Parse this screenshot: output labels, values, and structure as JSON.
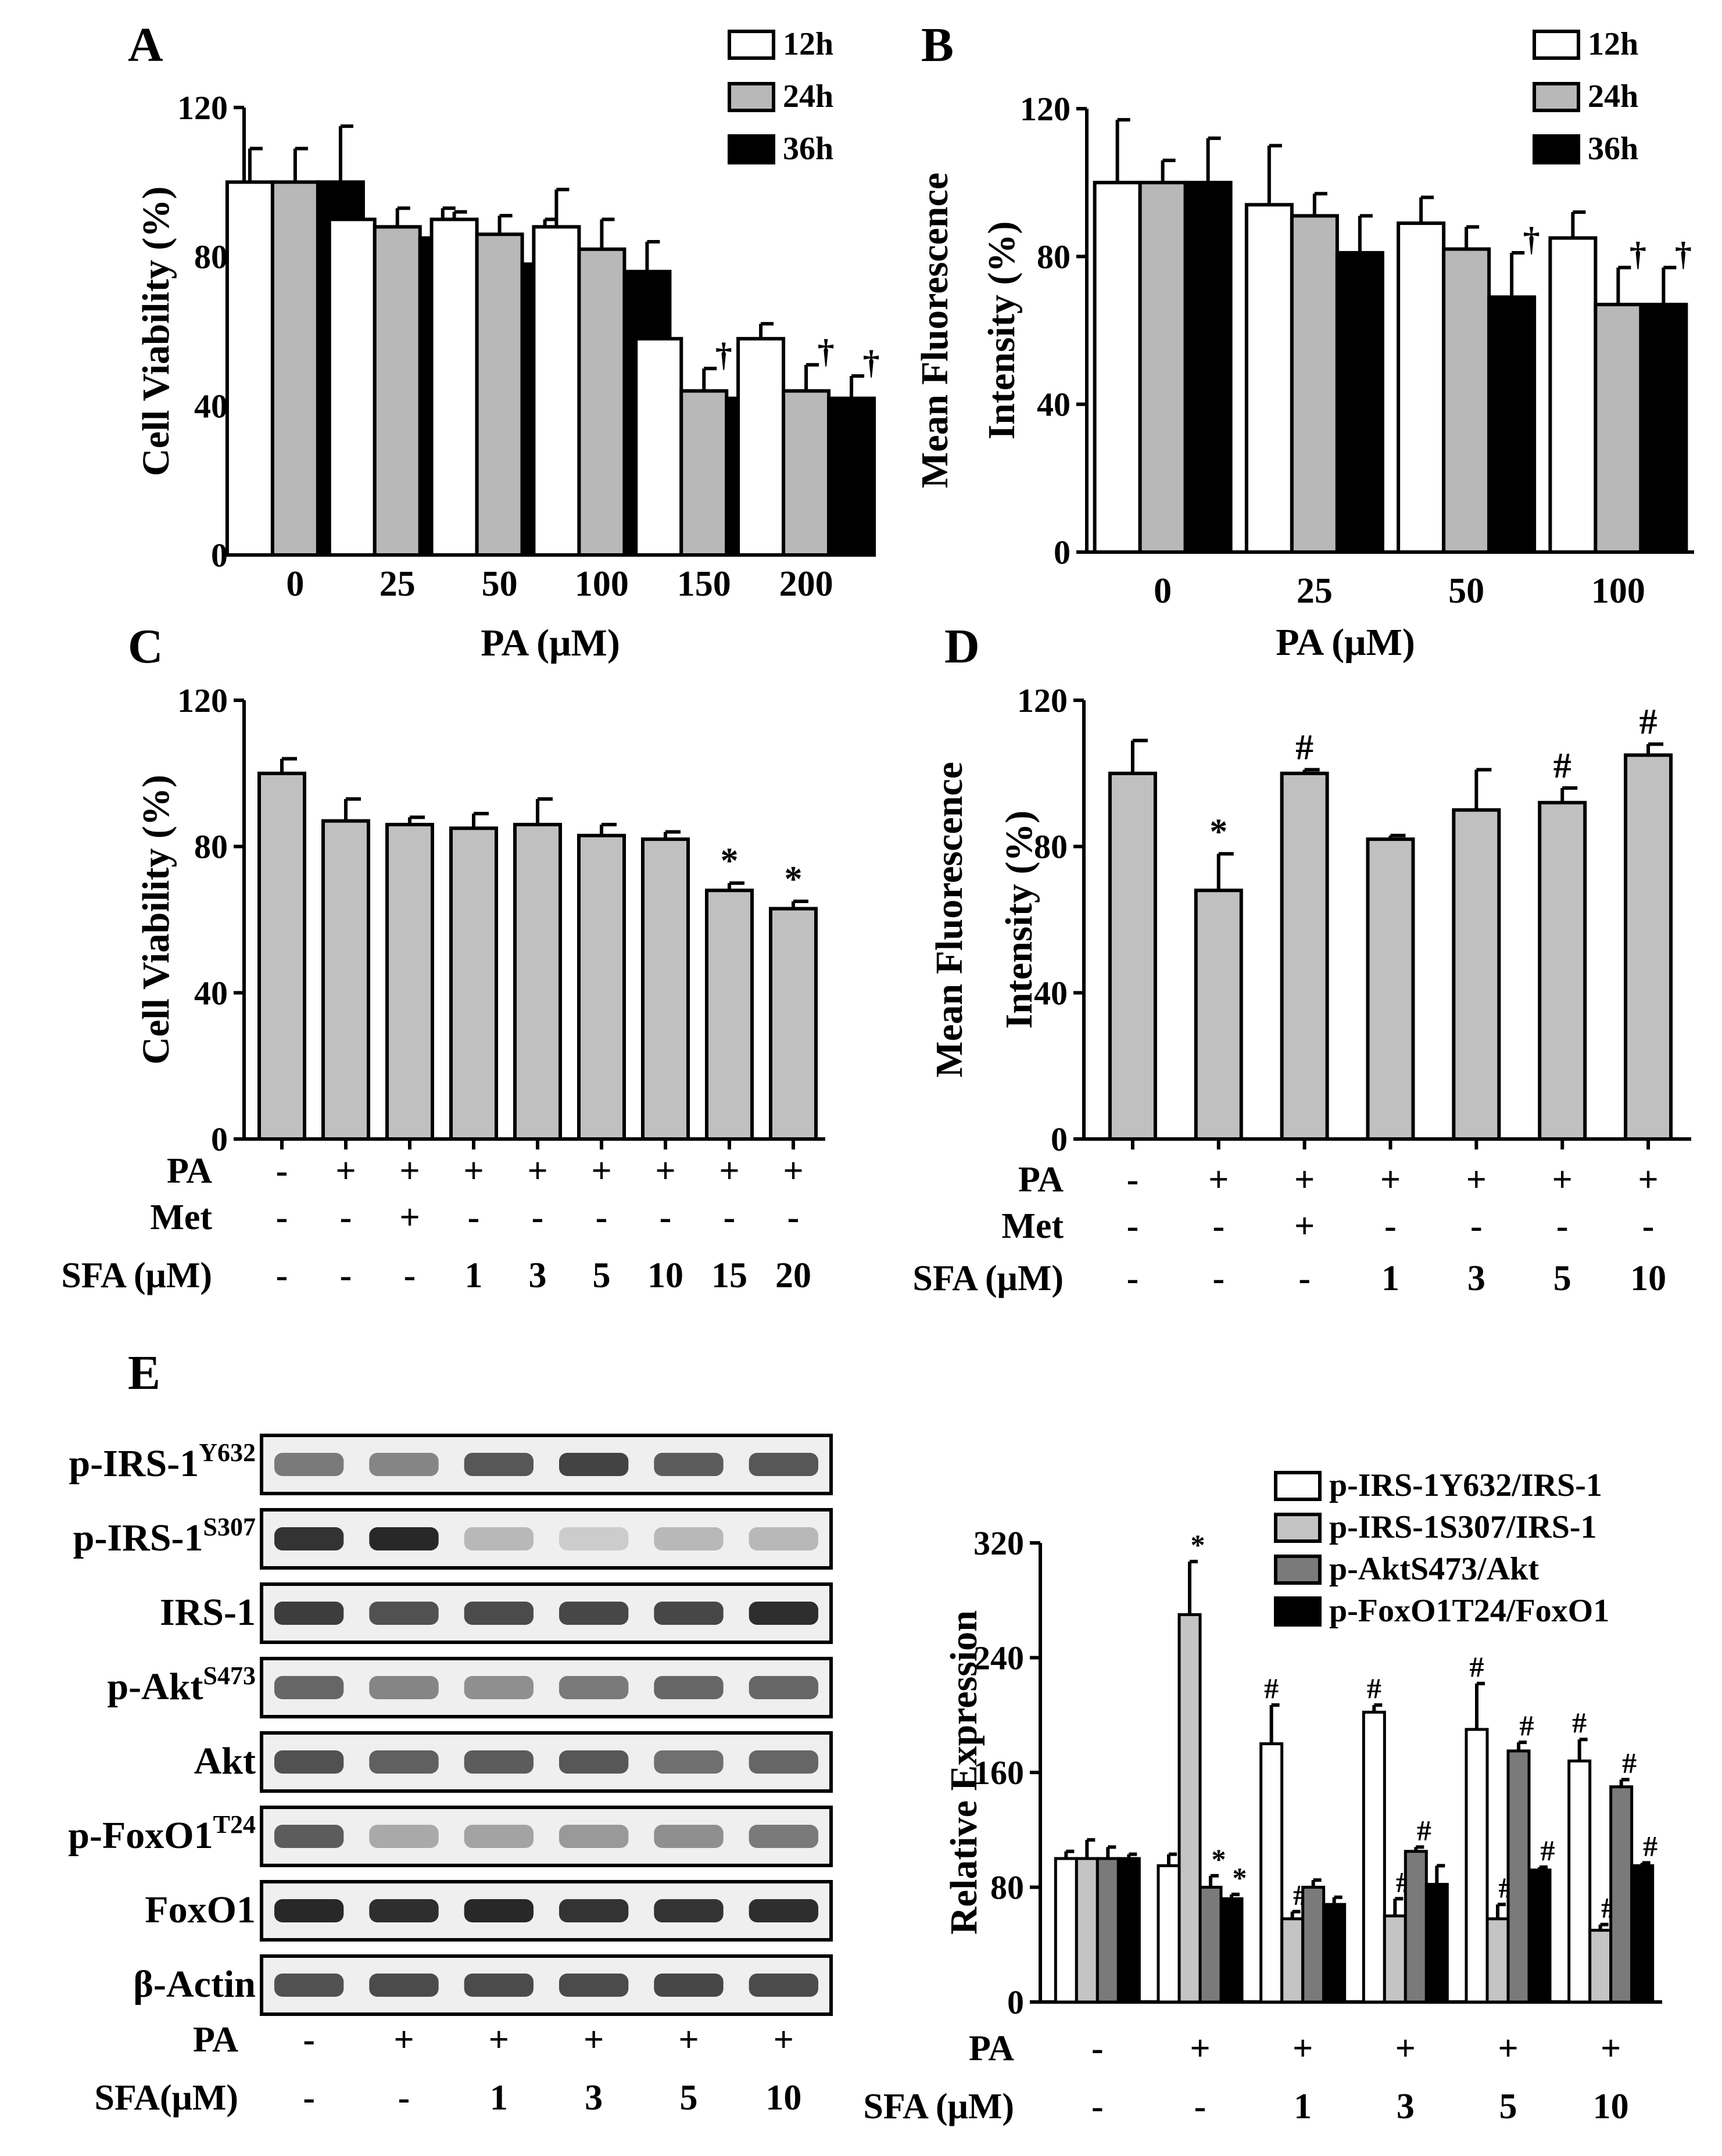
{
  "chart_data": [
    {
      "id": "A",
      "type": "bar",
      "panel_label": "A",
      "xlabel": "PA (μM)",
      "ylabel": "Cell Viability (%)",
      "ylim": [
        0,
        120
      ],
      "yticks": [
        "0",
        "40",
        "80",
        "120"
      ],
      "categories": [
        "0",
        "25",
        "50",
        "100",
        "150",
        "200"
      ],
      "series": [
        {
          "name": "12h",
          "color": "#ffffff",
          "values": [
            100,
            90,
            90,
            88,
            58,
            58
          ],
          "errors": [
            9,
            5,
            2,
            10,
            4,
            4
          ],
          "marks": [
            "",
            "",
            "",
            "",
            "",
            ""
          ]
        },
        {
          "name": "24h",
          "color": "#b8b8b8",
          "values": [
            100,
            88,
            86,
            82,
            44,
            44
          ],
          "errors": [
            9,
            5,
            5,
            8,
            6,
            7
          ],
          "marks": [
            "",
            "",
            "",
            "",
            "†",
            "†"
          ]
        },
        {
          "name": "36h",
          "color": "#000000",
          "values": [
            100,
            85,
            78,
            76,
            42,
            42
          ],
          "errors": [
            15,
            8,
            12,
            8,
            6,
            6
          ],
          "marks": [
            "",
            "",
            "",
            "",
            "†",
            "†"
          ]
        }
      ]
    },
    {
      "id": "B",
      "type": "bar",
      "panel_label": "B",
      "xlabel": "PA (μM)",
      "ylabel": [
        "Mean Fluorescence",
        "Intensity (%)"
      ],
      "ylim": [
        0,
        120
      ],
      "yticks": [
        "0",
        "40",
        "80",
        "120"
      ],
      "categories": [
        "0",
        "25",
        "50",
        "100"
      ],
      "series": [
        {
          "name": "12h",
          "color": "#ffffff",
          "values": [
            100,
            94,
            89,
            85
          ],
          "errors": [
            17,
            16,
            7,
            7
          ],
          "marks": [
            "",
            "",
            "",
            ""
          ]
        },
        {
          "name": "24h",
          "color": "#b8b8b8",
          "values": [
            100,
            91,
            82,
            67
          ],
          "errors": [
            6,
            6,
            6,
            10
          ],
          "marks": [
            "",
            "",
            "",
            "†"
          ]
        },
        {
          "name": "36h",
          "color": "#000000",
          "values": [
            100,
            81,
            69,
            67
          ],
          "errors": [
            12,
            10,
            12,
            10
          ],
          "marks": [
            "",
            "",
            "†",
            "†"
          ]
        }
      ]
    },
    {
      "id": "C",
      "type": "bar",
      "panel_label": "C",
      "ylabel": "Cell Viability (%)",
      "ylim": [
        0,
        120
      ],
      "yticks": [
        "0",
        "40",
        "80",
        "120"
      ],
      "values": [
        100,
        87,
        86,
        85,
        86,
        83,
        82,
        68,
        63
      ],
      "errors": [
        4,
        6,
        2,
        4,
        7,
        3,
        2,
        2,
        2
      ],
      "marks": [
        "",
        "",
        "",
        "",
        "",
        "",
        "",
        "*",
        "*"
      ],
      "bar_color": "#c0c0c0",
      "conditions": [
        {
          "label": "PA",
          "values": [
            "-",
            "+",
            "+",
            "+",
            "+",
            "+",
            "+",
            "+",
            "+"
          ]
        },
        {
          "label": "Met",
          "values": [
            "-",
            "-",
            "+",
            "-",
            "-",
            "-",
            "-",
            "-",
            "-"
          ]
        },
        {
          "label": "SFA (μM)",
          "values": [
            "-",
            "-",
            "-",
            "1",
            "3",
            "5",
            "10",
            "15",
            "20"
          ]
        }
      ]
    },
    {
      "id": "D",
      "type": "bar",
      "panel_label": "D",
      "ylabel": [
        "Mean Fluorescence",
        "Intensity (%)"
      ],
      "ylim": [
        0,
        120
      ],
      "yticks": [
        "0",
        "40",
        "80",
        "120"
      ],
      "values": [
        100,
        68,
        100,
        82,
        90,
        92,
        105
      ],
      "errors": [
        9,
        10,
        1,
        1,
        11,
        4,
        3
      ],
      "marks": [
        "",
        "*",
        "#",
        "",
        "",
        "#",
        "#"
      ],
      "bar_color": "#c0c0c0",
      "conditions": [
        {
          "label": "PA",
          "values": [
            "-",
            "+",
            "+",
            "+",
            "+",
            "+",
            "+"
          ]
        },
        {
          "label": "Met",
          "values": [
            "-",
            "-",
            "+",
            "-",
            "-",
            "-",
            "-"
          ]
        },
        {
          "label": "SFA (μM)",
          "values": [
            "-",
            "-",
            "-",
            "1",
            "3",
            "5",
            "10"
          ]
        }
      ]
    },
    {
      "id": "E",
      "type": "bar",
      "panel_label": "E",
      "ylabel": "Relative Expression",
      "ylim": [
        0,
        320
      ],
      "yticks": [
        "0",
        "80",
        "160",
        "240",
        "320"
      ],
      "series": [
        {
          "name": "p-IRS-1Y632/IRS-1",
          "color": "#ffffff",
          "values": [
            100,
            95,
            180,
            202,
            190,
            168
          ],
          "errors": [
            5,
            8,
            27,
            5,
            32,
            15
          ],
          "marks": [
            "",
            "",
            "#",
            "#",
            "#",
            "#"
          ]
        },
        {
          "name": "p-IRS-1S307/IRS-1",
          "color": "#c4c4c4",
          "values": [
            100,
            270,
            58,
            60,
            58,
            50
          ],
          "errors": [
            13,
            37,
            5,
            12,
            10,
            4
          ],
          "marks": [
            "",
            "*",
            "#",
            "#",
            "#",
            "#"
          ]
        },
        {
          "name": "p-AktS473/Akt",
          "color": "#7a7a7a",
          "values": [
            100,
            80,
            80,
            105,
            175,
            150
          ],
          "errors": [
            8,
            8,
            5,
            3,
            6,
            5
          ],
          "marks": [
            "",
            "*",
            "",
            "#",
            "#",
            "#"
          ]
        },
        {
          "name": "p-FoxO1T24/FoxO1",
          "color": "#000000",
          "values": [
            100,
            72,
            68,
            82,
            92,
            95
          ],
          "errors": [
            3,
            3,
            5,
            13,
            2,
            2
          ],
          "marks": [
            "",
            "*",
            "",
            "",
            "#",
            "#"
          ]
        }
      ],
      "conditions": [
        {
          "label": "PA",
          "values": [
            "-",
            "+",
            "+",
            "+",
            "+",
            "+"
          ]
        },
        {
          "label": "SFA (μM)",
          "values": [
            "-",
            "-",
            "1",
            "3",
            "5",
            "10"
          ]
        }
      ]
    }
  ],
  "blot": {
    "rows": [
      {
        "main": "p-IRS-1",
        "sup": "Y632",
        "intensity": [
          0.55,
          0.5,
          0.72,
          0.82,
          0.7,
          0.72
        ]
      },
      {
        "main": "p-IRS-1",
        "sup": "S307",
        "intensity": [
          0.9,
          0.95,
          0.25,
          0.15,
          0.25,
          0.25
        ]
      },
      {
        "main": "IRS-1",
        "sup": "",
        "intensity": [
          0.85,
          0.75,
          0.78,
          0.8,
          0.8,
          0.92
        ]
      },
      {
        "main": "p-Akt",
        "sup": "S473",
        "intensity": [
          0.65,
          0.5,
          0.45,
          0.55,
          0.65,
          0.65
        ]
      },
      {
        "main": "Akt",
        "sup": "",
        "intensity": [
          0.75,
          0.68,
          0.7,
          0.72,
          0.6,
          0.65
        ]
      },
      {
        "main": "p-FoxO1",
        "sup": "T24",
        "intensity": [
          0.7,
          0.32,
          0.35,
          0.4,
          0.45,
          0.55
        ]
      },
      {
        "main": "FoxO1",
        "sup": "",
        "intensity": [
          0.95,
          0.92,
          0.95,
          0.9,
          0.9,
          0.92
        ]
      },
      {
        "main": "β-Actin",
        "sup": "",
        "intensity": [
          0.75,
          0.78,
          0.78,
          0.78,
          0.8,
          0.78
        ]
      }
    ],
    "conditions": [
      {
        "label": "PA",
        "values": [
          "-",
          "+",
          "+",
          "+",
          "+",
          "+"
        ]
      },
      {
        "label": "SFA(μM)",
        "values": [
          "-",
          "-",
          "1",
          "3",
          "5",
          "10"
        ]
      }
    ]
  }
}
